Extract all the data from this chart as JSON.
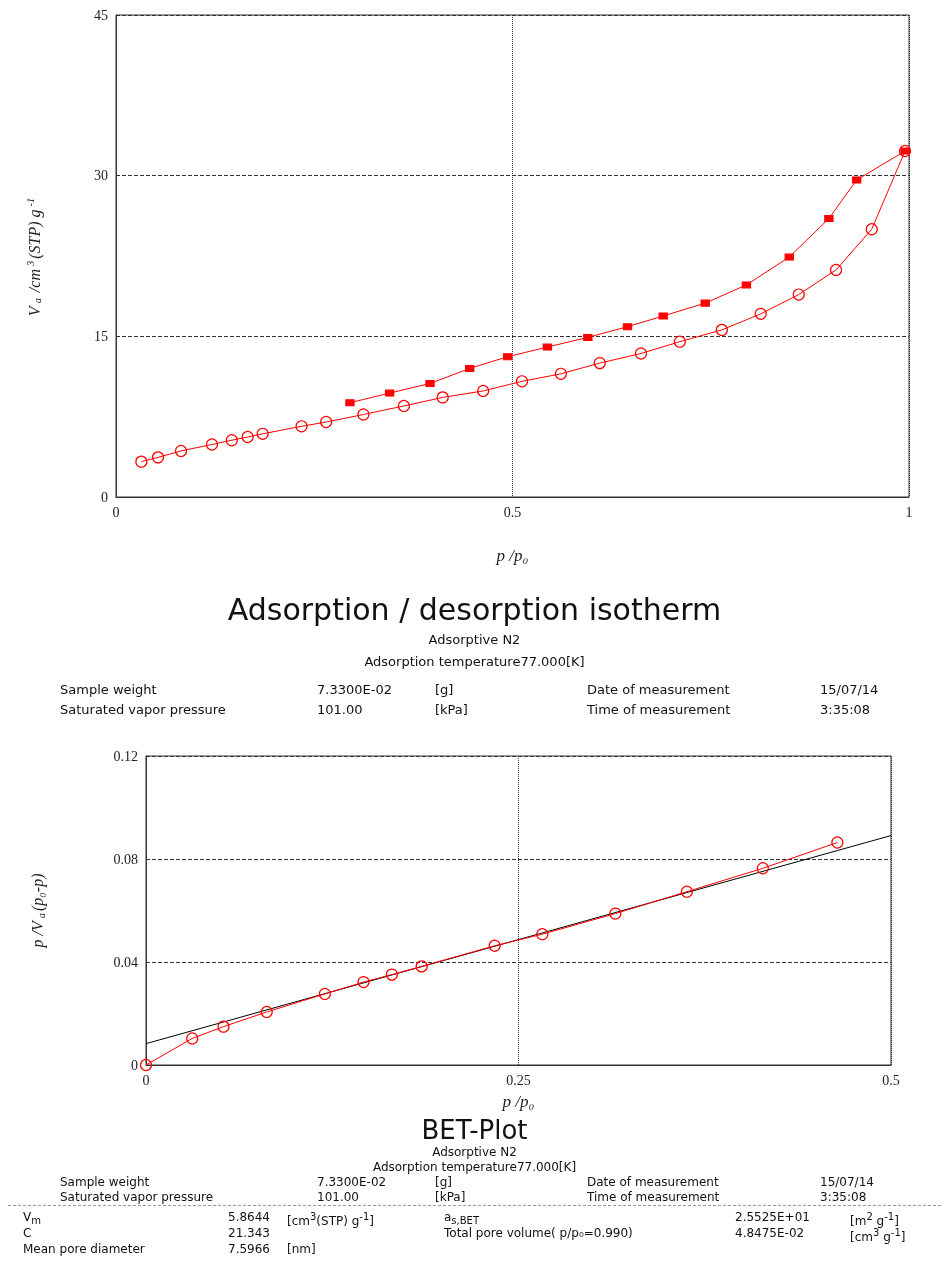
{
  "chart_data": [
    {
      "type": "line",
      "title": "Adsorption / desorption isotherm",
      "subtitle": "Adsorptive N2",
      "xlabel": "p /p₀",
      "ylabel": "V$_{a}$ /cm$^{3}$(STP) g$^{-1}$",
      "annotations": [
        "Adsorption temperature77.000[K]",
        "Sample weight",
        "7.3300E-02",
        "[g]",
        "Date of measurement",
        "15/07/14",
        "Saturated vapor pressure",
        "101.00",
        "[kPa]",
        "Time of measurement",
        "3:35:08"
      ],
      "xlim": [
        0,
        1
      ],
      "xticks": [
        0,
        0.5,
        1
      ],
      "ylim": [
        0,
        45
      ],
      "yticks": [
        0,
        15,
        30,
        45
      ],
      "grid": true,
      "series": [
        {
          "color": "#ff0000",
          "marker": "circle",
          "x": [
            0.032,
            0.053,
            0.082,
            0.121,
            0.146,
            0.166,
            0.185,
            0.234,
            0.265,
            0.312,
            0.363,
            0.412,
            0.463,
            0.512,
            0.561,
            0.61,
            0.662,
            0.711,
            0.764,
            0.813,
            0.861,
            0.908,
            0.953,
            0.995
          ],
          "values": [
            3.3,
            3.7,
            4.3,
            4.9,
            5.3,
            5.6,
            5.9,
            6.6,
            7.0,
            7.7,
            8.5,
            9.3,
            9.9,
            10.8,
            11.5,
            12.5,
            13.4,
            14.5,
            15.6,
            17.1,
            18.9,
            21.2,
            25.0,
            32.3
          ]
        },
        {
          "color": "#ff0000",
          "marker": "square",
          "x": [
            0.995,
            0.934,
            0.899,
            0.849,
            0.795,
            0.743,
            0.69,
            0.645,
            0.595,
            0.544,
            0.494,
            0.446,
            0.396,
            0.345,
            0.295
          ],
          "values": [
            32.3,
            29.6,
            26.0,
            22.4,
            19.8,
            18.1,
            16.9,
            15.9,
            14.9,
            14.0,
            13.1,
            12.0,
            10.6,
            9.7,
            8.8
          ]
        }
      ]
    },
    {
      "type": "line",
      "title": "BET-Plot",
      "subtitle": "Adsorptive N2",
      "xlabel": "p /p₀",
      "ylabel": "p /V$_{a}$(p₀-p)",
      "annotations": [
        "Adsorption temperature77.000[K]",
        "Sample weight",
        "7.3300E-02",
        "[g]",
        "Date of measurement",
        "15/07/14",
        "Saturated vapor pressure",
        "101.00",
        "[kPa]",
        "Time of measurement",
        "3:35:08",
        "V$_{m}$",
        "5.8644",
        "[cm$^{3}$(STP) g$^{-1}$]",
        "a$_{s,BET}$",
        "2.5525E+01",
        "[m$^{2}$ g$^{-1}$]",
        "C",
        "21.343",
        "Total pore volume( p/p₀=0.990)",
        "4.8475E-02",
        "[cm$^{3}$ g$^{-1}$]",
        "Mean pore diameter",
        "7.5966",
        "[nm]"
      ],
      "xlim": [
        0,
        0.5
      ],
      "xticks": [
        0,
        0.25,
        0.5
      ],
      "ylim": [
        0,
        0.12
      ],
      "yticks": [
        0,
        0.04,
        0.08,
        0.12
      ],
      "grid": true,
      "series": [
        {
          "color": "#ff0000",
          "marker": "circle",
          "x": [
            0,
            0.031,
            0.052,
            0.081,
            0.12,
            0.146,
            0.165,
            0.185,
            0.234,
            0.266,
            0.315,
            0.363,
            0.414,
            0.464
          ],
          "values": [
            0,
            0.0103,
            0.0149,
            0.0206,
            0.0276,
            0.0322,
            0.0351,
            0.0383,
            0.0463,
            0.0508,
            0.0588,
            0.0673,
            0.0764,
            0.0864
          ]
        },
        {
          "color": "#000000",
          "marker": "none",
          "x": [
            0,
            0.5
          ],
          "values": [
            0.0083,
            0.0891
          ]
        }
      ]
    }
  ]
}
